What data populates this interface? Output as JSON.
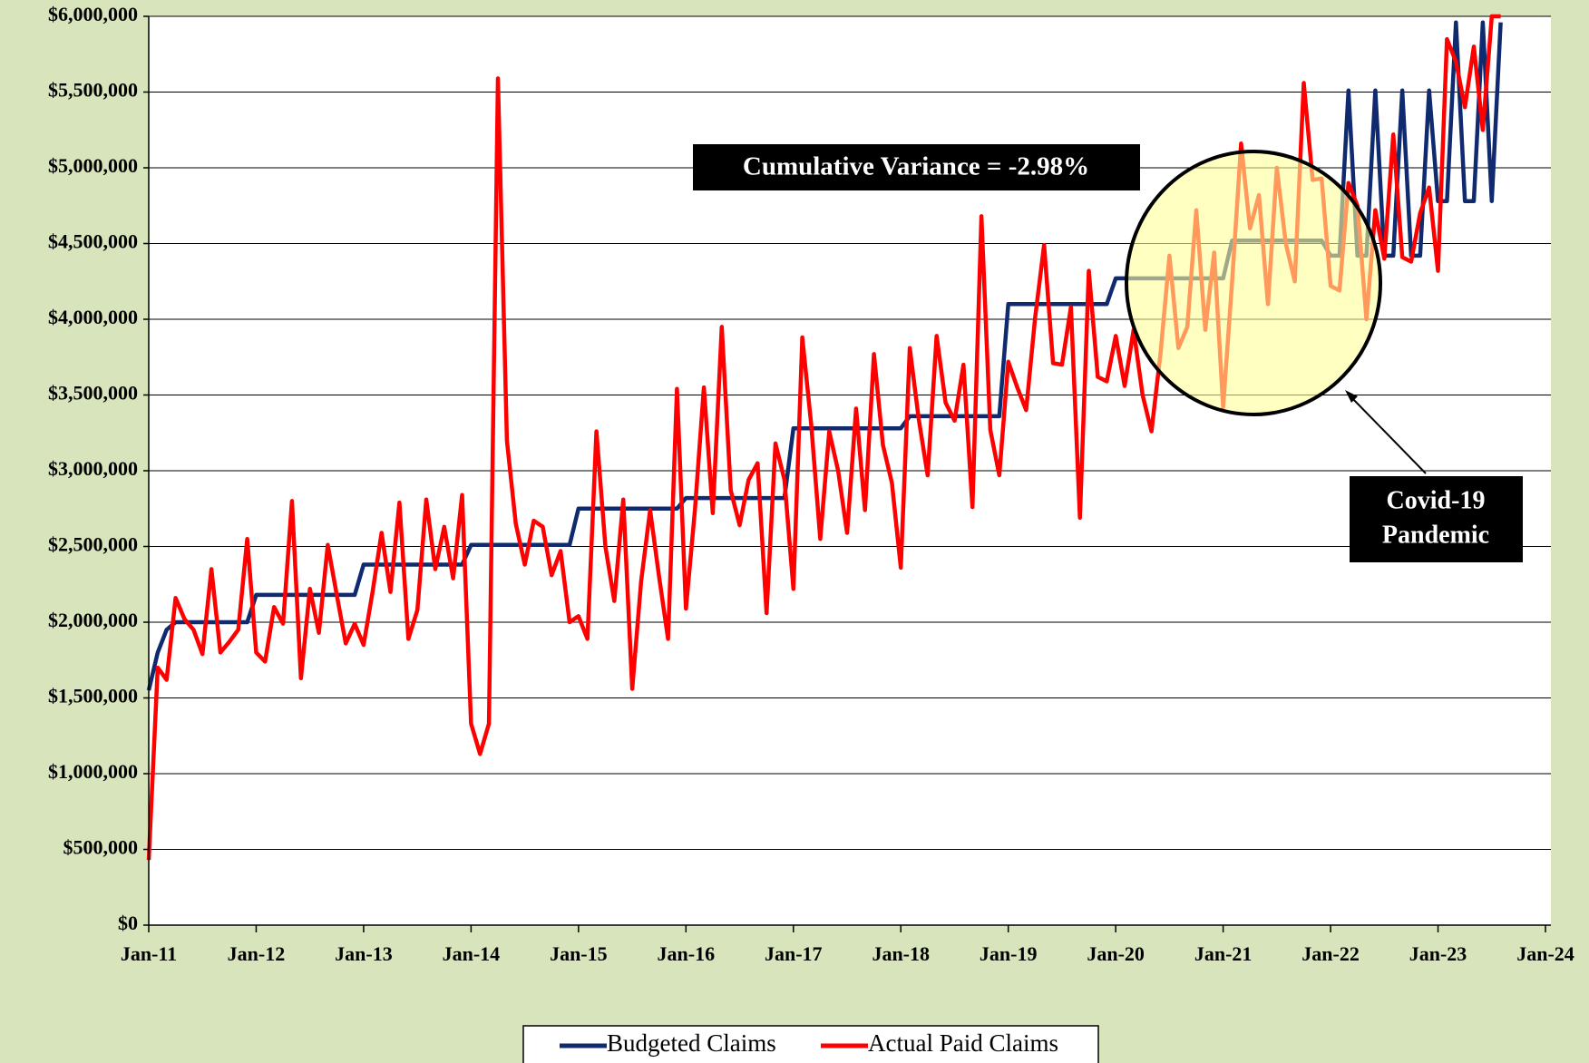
{
  "chart_data": {
    "type": "line",
    "x": [
      "Jan-11",
      "Feb-11",
      "Mar-11",
      "Apr-11",
      "May-11",
      "Jun-11",
      "Jul-11",
      "Aug-11",
      "Sep-11",
      "Oct-11",
      "Nov-11",
      "Dec-11",
      "Jan-12",
      "Feb-12",
      "Mar-12",
      "Apr-12",
      "May-12",
      "Jun-12",
      "Jul-12",
      "Aug-12",
      "Sep-12",
      "Oct-12",
      "Nov-12",
      "Dec-12",
      "Jan-13",
      "Feb-13",
      "Mar-13",
      "Apr-13",
      "May-13",
      "Jun-13",
      "Jul-13",
      "Aug-13",
      "Sep-13",
      "Oct-13",
      "Nov-13",
      "Dec-13",
      "Jan-14",
      "Feb-14",
      "Mar-14",
      "Apr-14",
      "May-14",
      "Jun-14",
      "Jul-14",
      "Aug-14",
      "Sep-14",
      "Oct-14",
      "Nov-14",
      "Dec-14",
      "Jan-15",
      "Feb-15",
      "Mar-15",
      "Apr-15",
      "May-15",
      "Jun-15",
      "Jul-15",
      "Aug-15",
      "Sep-15",
      "Oct-15",
      "Nov-15",
      "Dec-15",
      "Jan-16",
      "Feb-16",
      "Mar-16",
      "Apr-16",
      "May-16",
      "Jun-16",
      "Jul-16",
      "Aug-16",
      "Sep-16",
      "Oct-16",
      "Nov-16",
      "Dec-16",
      "Jan-17",
      "Feb-17",
      "Mar-17",
      "Apr-17",
      "May-17",
      "Jun-17",
      "Jul-17",
      "Aug-17",
      "Sep-17",
      "Oct-17",
      "Nov-17",
      "Dec-17",
      "Jan-18",
      "Feb-18",
      "Mar-18",
      "Apr-18",
      "May-18",
      "Jun-18",
      "Jul-18",
      "Aug-18",
      "Sep-18",
      "Oct-18",
      "Nov-18",
      "Dec-18",
      "Jan-19",
      "Feb-19",
      "Mar-19",
      "Apr-19",
      "May-19",
      "Jun-19",
      "Jul-19",
      "Aug-19",
      "Sep-19",
      "Oct-19",
      "Nov-19",
      "Dec-19",
      "Jan-20",
      "Feb-20",
      "Mar-20",
      "Apr-20",
      "May-20",
      "Jun-20",
      "Jul-20",
      "Aug-20",
      "Sep-20",
      "Oct-20",
      "Nov-20",
      "Dec-20",
      "Jan-21",
      "Feb-21",
      "Mar-21",
      "Apr-21",
      "May-21",
      "Jun-21",
      "Jul-21",
      "Aug-21",
      "Sep-21",
      "Oct-21",
      "Nov-21",
      "Dec-21",
      "Jan-22",
      "Feb-22",
      "Mar-22",
      "Apr-22",
      "May-22",
      "Jun-22",
      "Jul-22",
      "Aug-22",
      "Sep-22",
      "Oct-22",
      "Nov-22",
      "Dec-22",
      "Jan-23",
      "Feb-23",
      "Mar-23",
      "Apr-23",
      "May-23",
      "Jun-23",
      "Jul-23",
      "Aug-23"
    ],
    "series": [
      {
        "name": "Budgeted Claims",
        "color": "#0f2a6e",
        "values": [
          1550000,
          1800000,
          1950000,
          2000000,
          2000000,
          2000000,
          2000000,
          2000000,
          2000000,
          2000000,
          2000000,
          2000000,
          2180000,
          2180000,
          2180000,
          2180000,
          2180000,
          2180000,
          2180000,
          2180000,
          2180000,
          2180000,
          2180000,
          2180000,
          2380000,
          2380000,
          2380000,
          2380000,
          2380000,
          2380000,
          2380000,
          2380000,
          2380000,
          2380000,
          2380000,
          2380000,
          2510000,
          2510000,
          2510000,
          2510000,
          2510000,
          2510000,
          2510000,
          2510000,
          2510000,
          2510000,
          2510000,
          2510000,
          2750000,
          2750000,
          2750000,
          2750000,
          2750000,
          2750000,
          2750000,
          2750000,
          2750000,
          2750000,
          2750000,
          2750000,
          2820000,
          2820000,
          2820000,
          2820000,
          2820000,
          2820000,
          2820000,
          2820000,
          2820000,
          2820000,
          2820000,
          2820000,
          3280000,
          3280000,
          3280000,
          3280000,
          3280000,
          3280000,
          3280000,
          3280000,
          3280000,
          3280000,
          3280000,
          3280000,
          3280000,
          3360000,
          3360000,
          3360000,
          3360000,
          3360000,
          3360000,
          3360000,
          3360000,
          3360000,
          3360000,
          3360000,
          4100000,
          4100000,
          4100000,
          4100000,
          4100000,
          4100000,
          4100000,
          4100000,
          4100000,
          4100000,
          4100000,
          4100000,
          4270000,
          4270000,
          4270000,
          4270000,
          4270000,
          4270000,
          4270000,
          4270000,
          4270000,
          4270000,
          4270000,
          4270000,
          4270000,
          4520000,
          4520000,
          4520000,
          4520000,
          4520000,
          4520000,
          4520000,
          4520000,
          4520000,
          4520000,
          4520000,
          4420000,
          4420000,
          5510000,
          4420000,
          4420000,
          5510000,
          4420000,
          4420000,
          5510000,
          4420000,
          4420000,
          5510000,
          4780000,
          4780000,
          5960000,
          4780000,
          4780000,
          5960000,
          4780000,
          5960000
        ]
      },
      {
        "name": "Actual Paid Claims",
        "color": "#ff0000",
        "values": [
          430000,
          1700000,
          1620000,
          2160000,
          2020000,
          1950000,
          1790000,
          2350000,
          1800000,
          1870000,
          1950000,
          2550000,
          1800000,
          1740000,
          2100000,
          1990000,
          2800000,
          1630000,
          2220000,
          1930000,
          2510000,
          2180000,
          1860000,
          1990000,
          1850000,
          2200000,
          2590000,
          2200000,
          2790000,
          1890000,
          2080000,
          2810000,
          2350000,
          2630000,
          2290000,
          2840000,
          1330000,
          1130000,
          1330000,
          5590000,
          3200000,
          2650000,
          2380000,
          2670000,
          2630000,
          2310000,
          2470000,
          2000000,
          2040000,
          1890000,
          3260000,
          2500000,
          2140000,
          2810000,
          1560000,
          2270000,
          2740000,
          2300000,
          1890000,
          3540000,
          2090000,
          2740000,
          3550000,
          2720000,
          3950000,
          2870000,
          2640000,
          2940000,
          3050000,
          2060000,
          3180000,
          2940000,
          2220000,
          3880000,
          3300000,
          2550000,
          3260000,
          3000000,
          2590000,
          3410000,
          2740000,
          3770000,
          3170000,
          2920000,
          2360000,
          3810000,
          3340000,
          2970000,
          3890000,
          3450000,
          3330000,
          3700000,
          2760000,
          4680000,
          3270000,
          2970000,
          3720000,
          3550000,
          3400000,
          4010000,
          4490000,
          3710000,
          3700000,
          4080000,
          2690000,
          4320000,
          3620000,
          3590000,
          3890000,
          3560000,
          3930000,
          3500000,
          3260000,
          3770000,
          4420000,
          3810000,
          3950000,
          4720000,
          3930000,
          4440000,
          3420000,
          4250000,
          5160000,
          4600000,
          4820000,
          4100000,
          5000000,
          4500000,
          4250000,
          5560000,
          4920000,
          4930000,
          4220000,
          4190000,
          4900000,
          4750000,
          4000000,
          4720000,
          4400000,
          5220000,
          4410000,
          4380000,
          4700000,
          4870000,
          4320000,
          5850000,
          5700000,
          5400000,
          5800000,
          5250000,
          6000000,
          6000000
        ]
      }
    ],
    "xticks": [
      "Jan-11",
      "Jan-12",
      "Jan-13",
      "Jan-14",
      "Jan-15",
      "Jan-16",
      "Jan-17",
      "Jan-18",
      "Jan-19",
      "Jan-20",
      "Jan-21",
      "Jan-22",
      "Jan-23",
      "Jan-24"
    ],
    "ylim": [
      0,
      6000000
    ],
    "yticks": [
      {
        "value": 0,
        "label": "$0"
      },
      {
        "value": 500000,
        "label": "$500,000"
      },
      {
        "value": 1000000,
        "label": "$1,000,000"
      },
      {
        "value": 1500000,
        "label": "$1,500,000"
      },
      {
        "value": 2000000,
        "label": "$2,000,000"
      },
      {
        "value": 2500000,
        "label": "$2,500,000"
      },
      {
        "value": 3000000,
        "label": "$3,000,000"
      },
      {
        "value": 3500000,
        "label": "$3,500,000"
      },
      {
        "value": 4000000,
        "label": "$4,000,000"
      },
      {
        "value": 4500000,
        "label": "$4,500,000"
      },
      {
        "value": 5000000,
        "label": "$5,000,000"
      },
      {
        "value": 5500000,
        "label": "$5,500,000"
      },
      {
        "value": 6000000,
        "label": "$6,000,000"
      }
    ],
    "grid": true,
    "annotations": {
      "variance": "Cumulative Variance = -2.98%",
      "covid": [
        "Covid-19",
        "Pandemic"
      ]
    }
  }
}
